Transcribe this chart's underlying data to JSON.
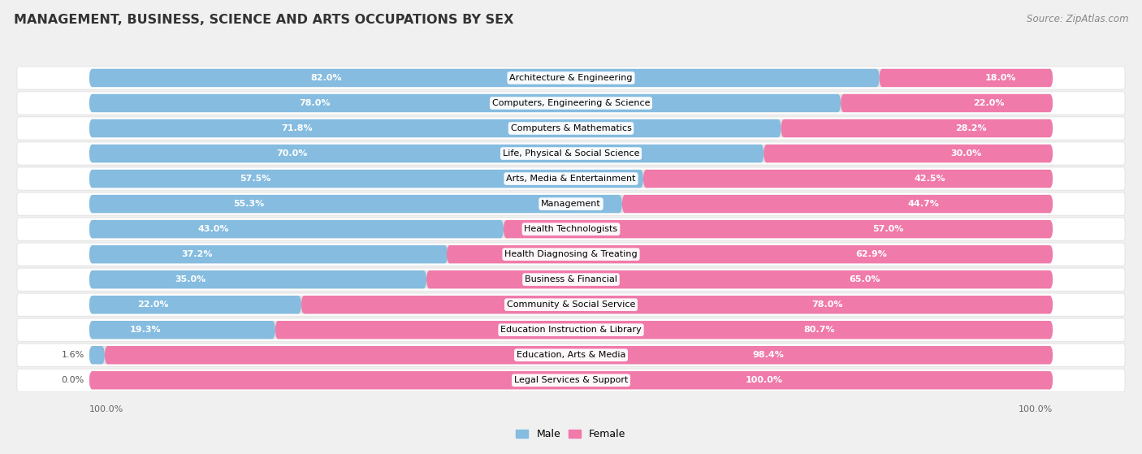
{
  "title": "MANAGEMENT, BUSINESS, SCIENCE AND ARTS OCCUPATIONS BY SEX",
  "source": "Source: ZipAtlas.com",
  "categories": [
    "Architecture & Engineering",
    "Computers, Engineering & Science",
    "Computers & Mathematics",
    "Life, Physical & Social Science",
    "Arts, Media & Entertainment",
    "Management",
    "Health Technologists",
    "Health Diagnosing & Treating",
    "Business & Financial",
    "Community & Social Service",
    "Education Instruction & Library",
    "Education, Arts & Media",
    "Legal Services & Support"
  ],
  "male_pct": [
    82.0,
    78.0,
    71.8,
    70.0,
    57.5,
    55.3,
    43.0,
    37.2,
    35.0,
    22.0,
    19.3,
    1.6,
    0.0
  ],
  "female_pct": [
    18.0,
    22.0,
    28.2,
    30.0,
    42.5,
    44.7,
    57.0,
    62.9,
    65.0,
    78.0,
    80.7,
    98.4,
    100.0
  ],
  "male_color": "#85bce0",
  "female_color": "#f07aaa",
  "bg_color": "#f0f0f0",
  "row_bg_color": "#ffffff",
  "bar_track_color": "#e0e0e0",
  "title_fontsize": 11.5,
  "label_fontsize": 8,
  "pct_fontsize": 8,
  "legend_fontsize": 9,
  "source_fontsize": 8.5
}
